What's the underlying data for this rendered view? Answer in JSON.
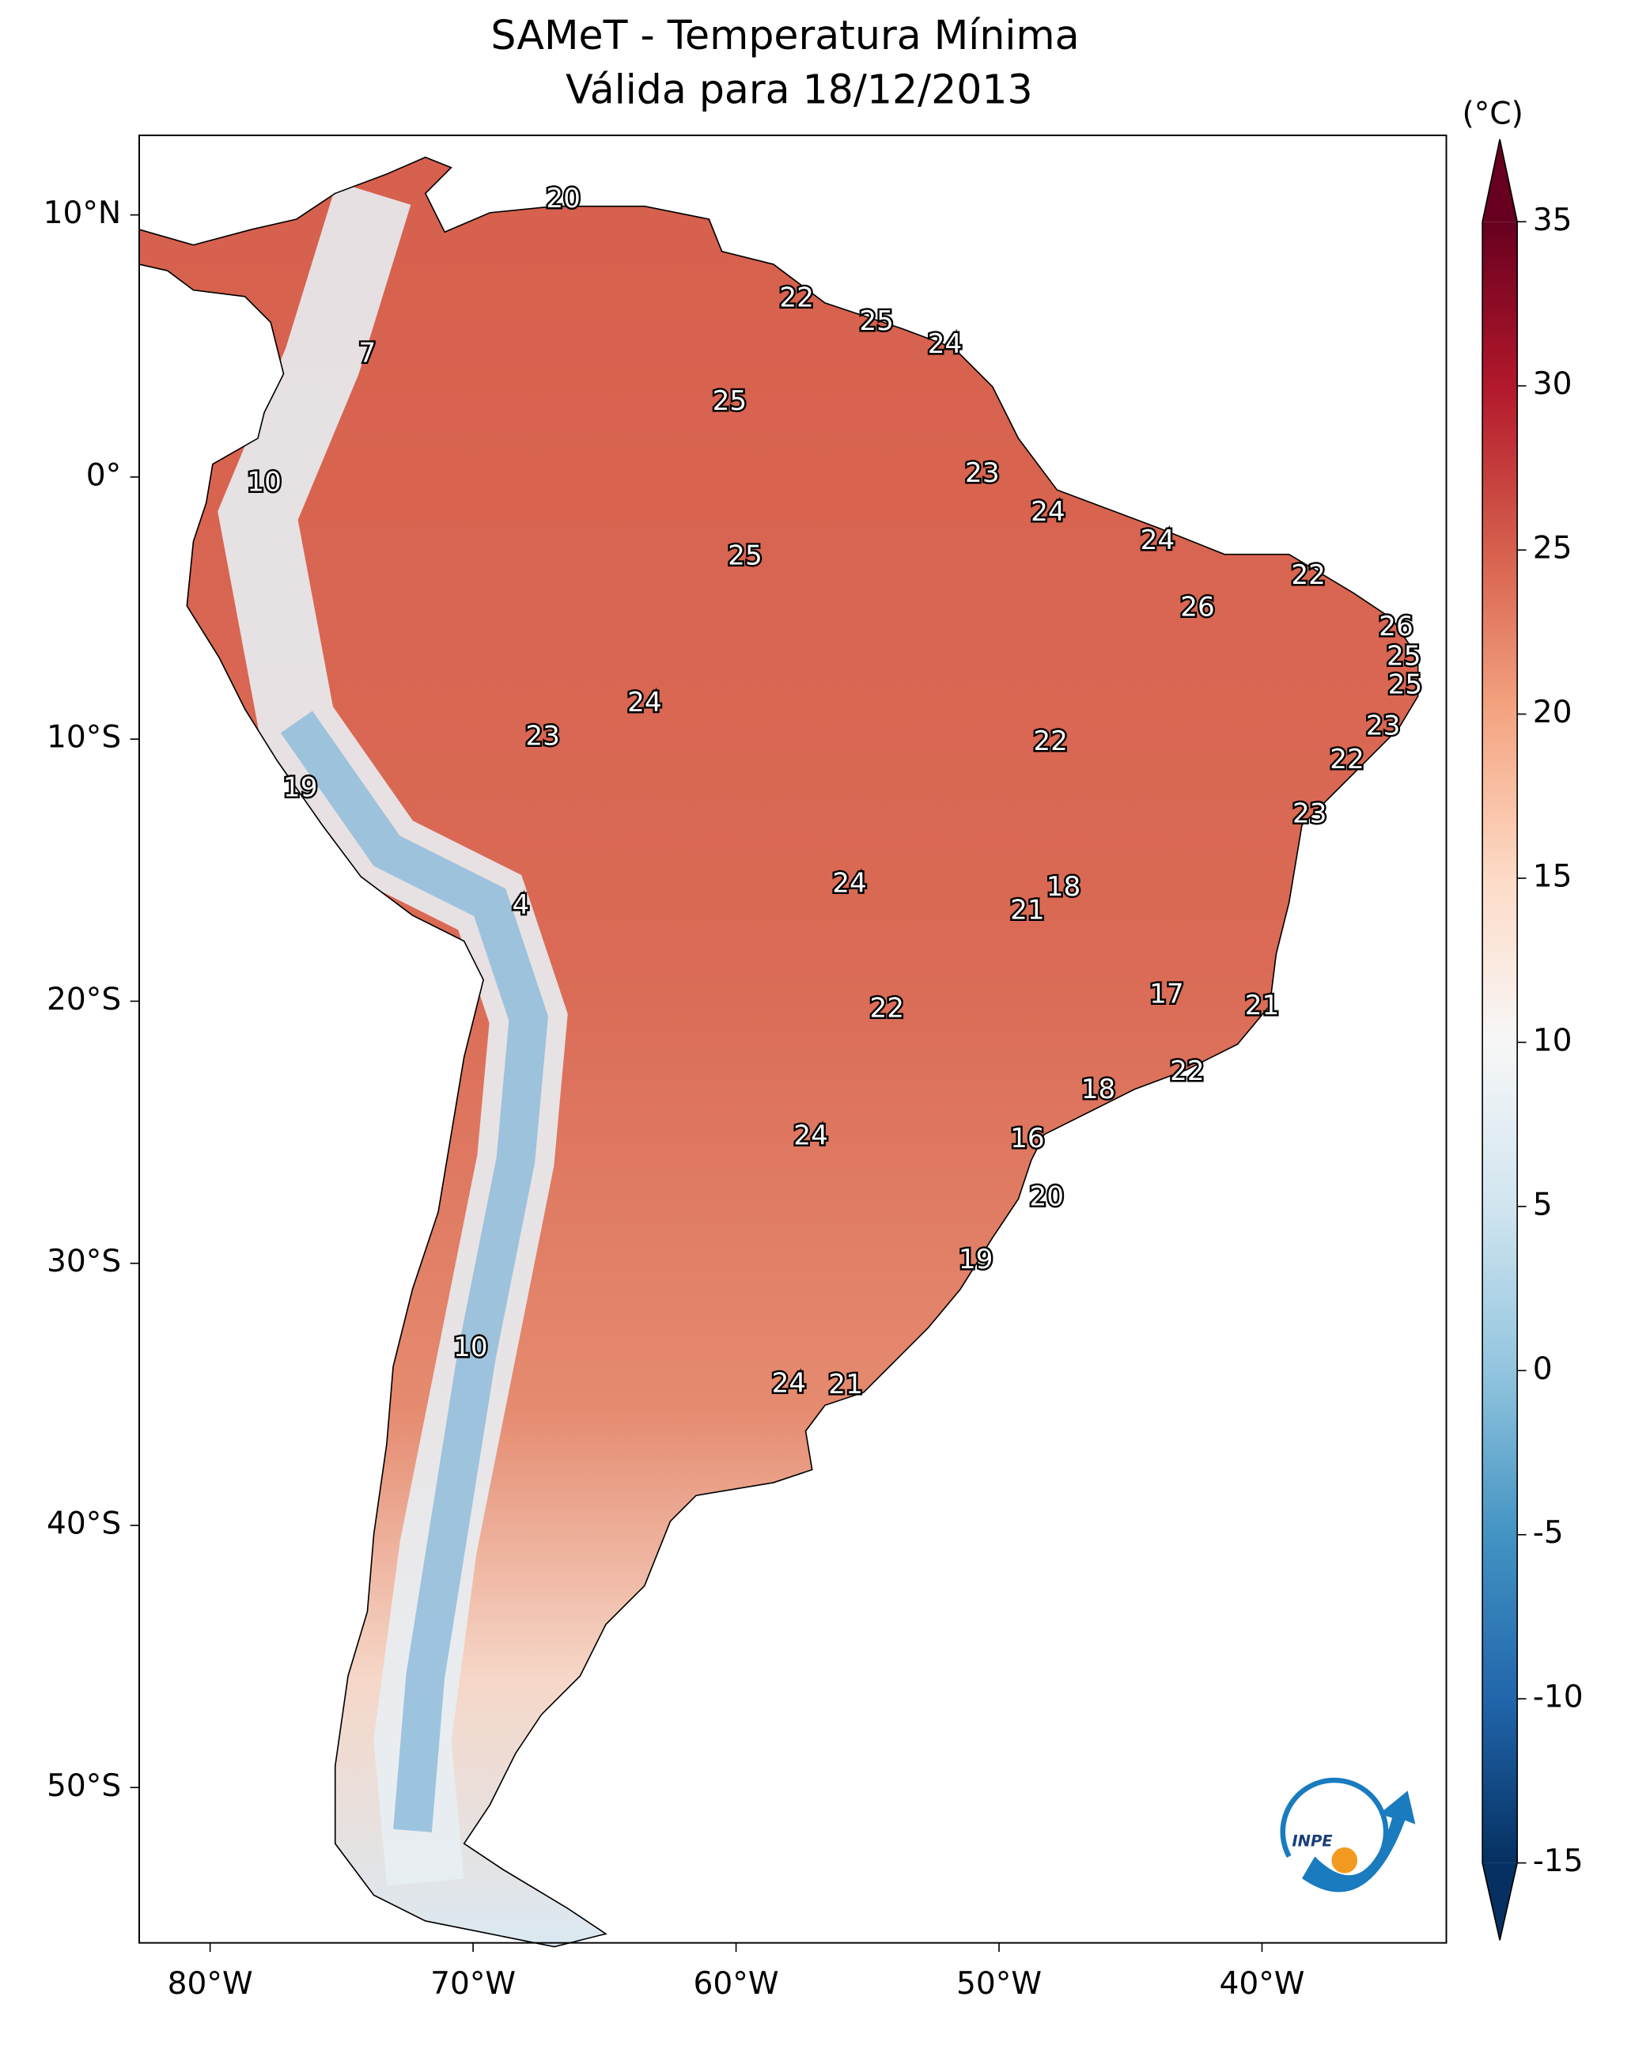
{
  "title": [
    "SAMeT - Temperatura Mínima",
    "Válida para 18/12/2013"
  ],
  "lon_ticks": [
    {
      "value": -80,
      "label": "80°W"
    },
    {
      "value": -70,
      "label": "70°W"
    },
    {
      "value": -60,
      "label": "60°W"
    },
    {
      "value": -50,
      "label": "50°W"
    },
    {
      "value": -40,
      "label": "40°W"
    }
  ],
  "lat_ticks": [
    {
      "value": 10,
      "label": "10°N"
    },
    {
      "value": 0,
      "label": "0°"
    },
    {
      "value": -10,
      "label": "10°S"
    },
    {
      "value": -20,
      "label": "20°S"
    },
    {
      "value": -30,
      "label": "30°S"
    },
    {
      "value": -40,
      "label": "40°S"
    },
    {
      "value": -50,
      "label": "50°S"
    }
  ],
  "colorbar": {
    "label": "(°C)",
    "lim": [
      -15,
      35
    ],
    "ticks": [
      -15,
      -10,
      -5,
      0,
      5,
      10,
      15,
      20,
      25,
      30,
      35
    ],
    "colors": [
      "#053061",
      "#2166ac",
      "#4393c3",
      "#92c5de",
      "#d1e5f0",
      "#f7f7f7",
      "#fddbc7",
      "#f4a582",
      "#d6604d",
      "#b2182b",
      "#67001f"
    ]
  },
  "station_values": [
    20,
    22,
    25,
    24,
    7,
    25,
    23,
    10,
    24,
    24,
    25,
    22,
    26,
    26,
    25,
    25,
    24,
    23,
    22,
    23,
    22,
    19,
    23,
    24,
    18,
    4,
    21,
    17,
    22,
    21,
    22,
    18,
    24,
    16,
    20,
    19,
    10,
    24,
    21
  ],
  "logo": "INPE"
}
